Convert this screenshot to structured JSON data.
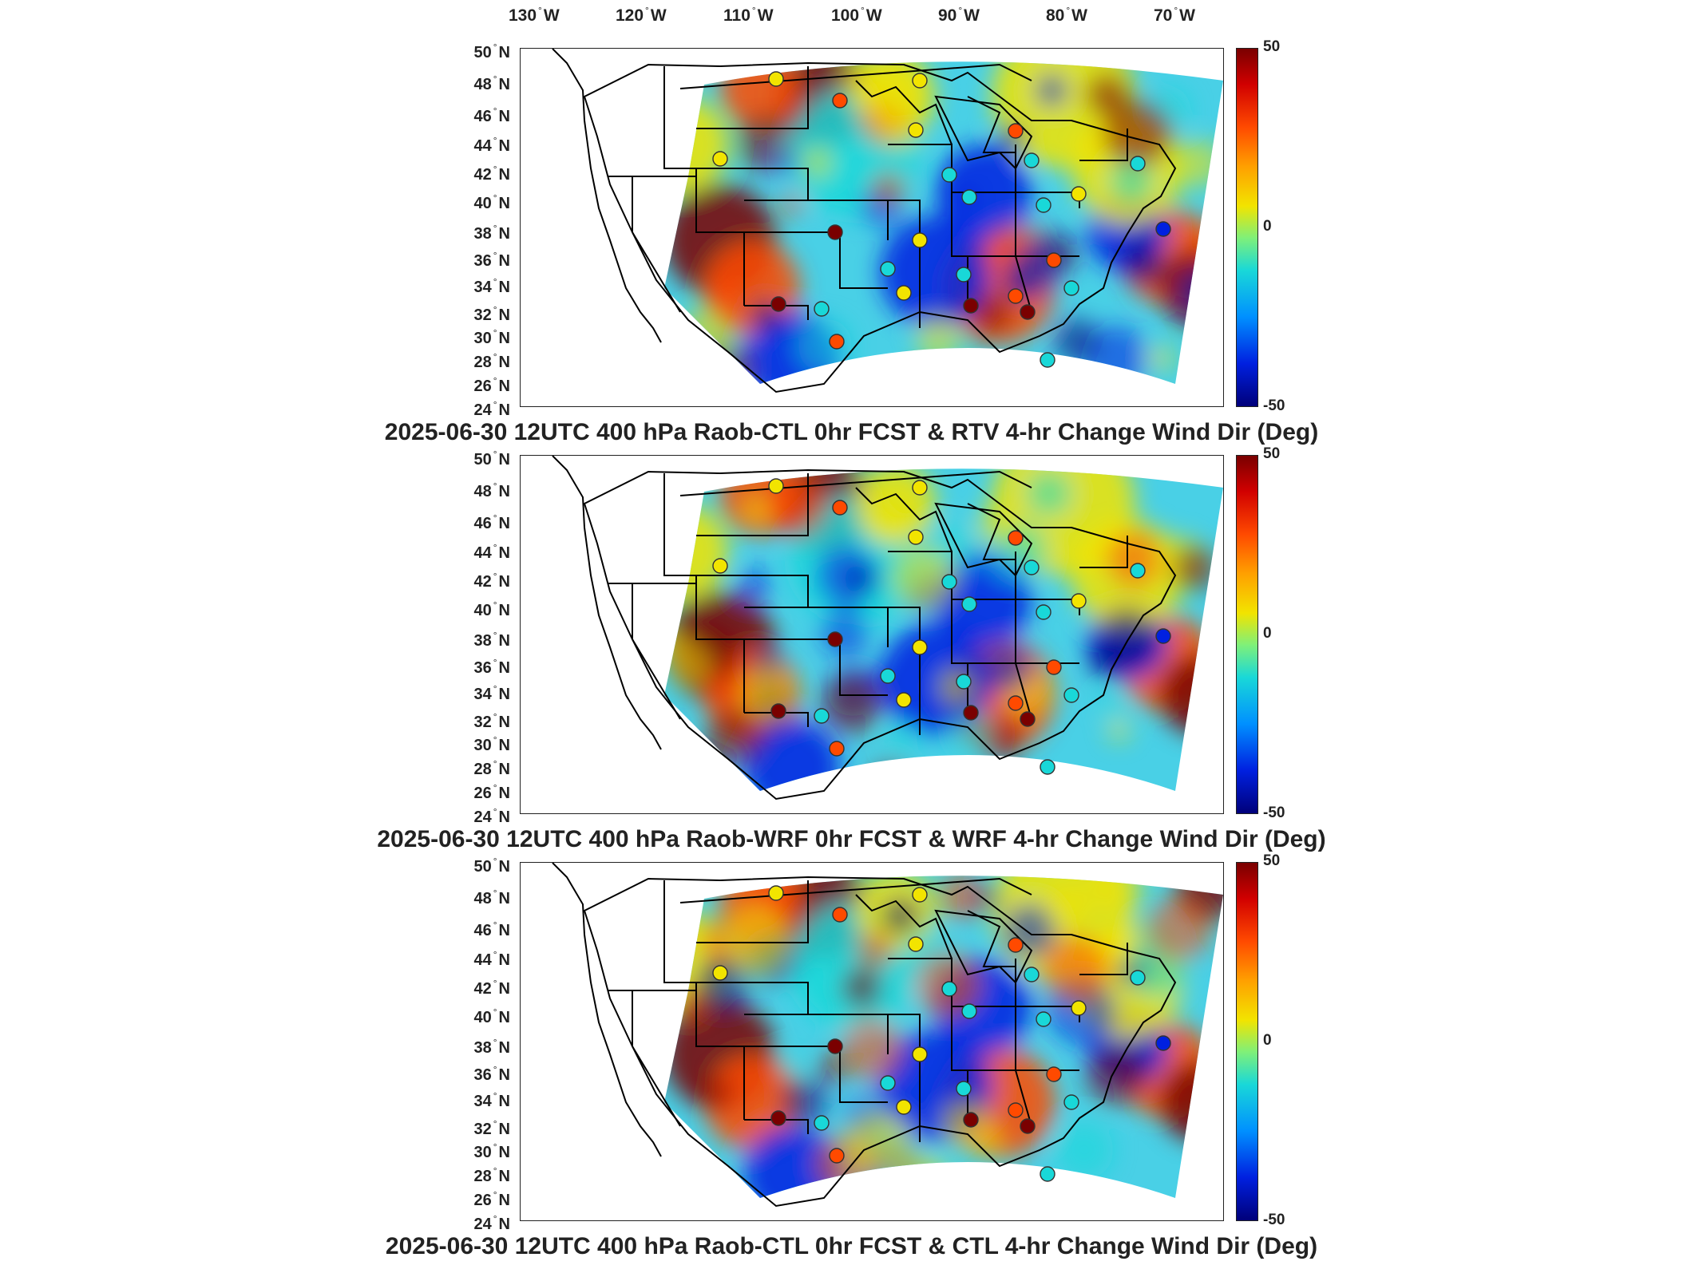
{
  "longitude_labels": [
    {
      "value": "130",
      "hemi": "W"
    },
    {
      "value": "120",
      "hemi": "W"
    },
    {
      "value": "110",
      "hemi": "W"
    },
    {
      "value": "100",
      "hemi": "W"
    },
    {
      "value": "90",
      "hemi": "W"
    },
    {
      "value": "80",
      "hemi": "W"
    },
    {
      "value": "70",
      "hemi": "W"
    }
  ],
  "latitude_labels": [
    {
      "value": "50",
      "hemi": "N"
    },
    {
      "value": "48",
      "hemi": "N"
    },
    {
      "value": "46",
      "hemi": "N"
    },
    {
      "value": "44",
      "hemi": "N"
    },
    {
      "value": "42",
      "hemi": "N"
    },
    {
      "value": "40",
      "hemi": "N"
    },
    {
      "value": "38",
      "hemi": "N"
    },
    {
      "value": "36",
      "hemi": "N"
    },
    {
      "value": "34",
      "hemi": "N"
    },
    {
      "value": "32",
      "hemi": "N"
    },
    {
      "value": "30",
      "hemi": "N"
    },
    {
      "value": "28",
      "hemi": "N"
    },
    {
      "value": "26",
      "hemi": "N"
    },
    {
      "value": "24",
      "hemi": "N"
    }
  ],
  "degree_symbol": "°",
  "colorbar": {
    "max_label": "50",
    "mid_label": "0",
    "min_label": "-50",
    "colors": [
      "#7a0000",
      "#ff4a00",
      "#f2e400",
      "#19d8d8",
      "#0020e0",
      "#00007a"
    ]
  },
  "panels": [
    {
      "title": "2025-06-30 12UTC 400 hPa Raob-CTL 0hr FCST & RTV 4-hr Change Wind Dir (Deg)"
    },
    {
      "title": "2025-06-30 12UTC 400 hPa Raob-WRF 0hr FCST & WRF 4-hr Change Wind Dir (Deg)"
    },
    {
      "title": "2025-06-30 12UTC 400 hPa Raob-CTL 0hr FCST & CTL 4-hr Change Wind Dir (Deg)"
    }
  ]
}
